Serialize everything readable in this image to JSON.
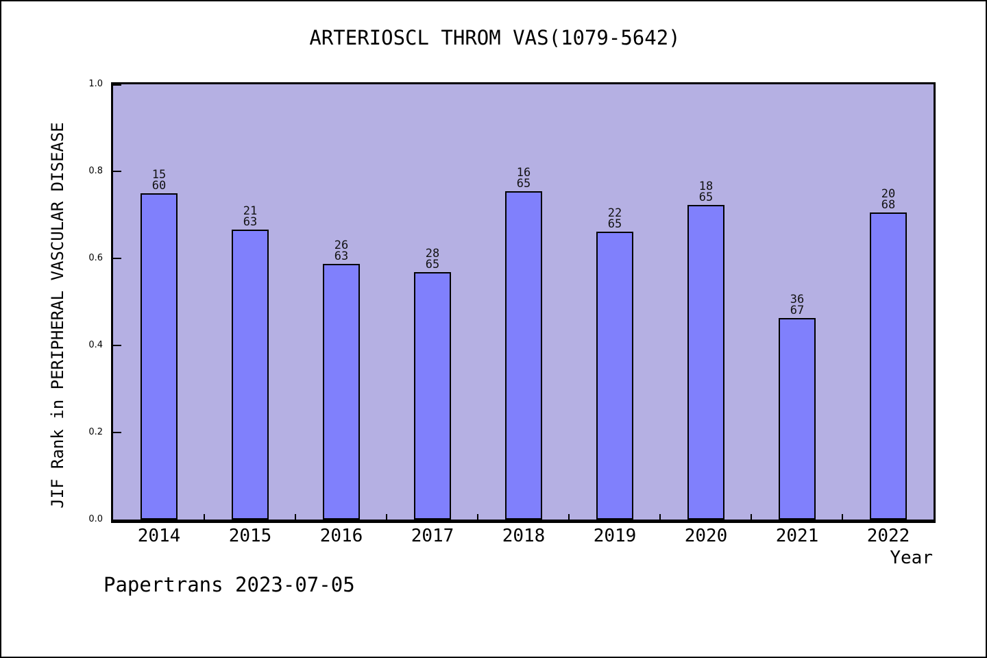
{
  "page": {
    "title": "ARTERIOSCL THROM VAS(1079-5642)",
    "footer": "Papertrans 2023-07-05"
  },
  "chart_data": {
    "type": "bar",
    "title": "ARTERIOSCL THROM VAS(1079-5642)",
    "xlabel": "Year",
    "ylabel": "JIF Rank in PERIPHERAL VASCULAR DISEASE",
    "ylim": [
      0.0,
      1.0
    ],
    "ytick_labels": [
      "0.0",
      "0.2",
      "0.4",
      "0.6",
      "0.8",
      "1.0"
    ],
    "grid": false,
    "legend": false,
    "categories": [
      "2014",
      "2015",
      "2016",
      "2017",
      "2018",
      "2019",
      "2020",
      "2021",
      "2022"
    ],
    "bars": [
      {
        "year": "2014",
        "rank": 15,
        "total": 60,
        "value": 0.75
      },
      {
        "year": "2015",
        "rank": 21,
        "total": 63,
        "value": 0.6667
      },
      {
        "year": "2016",
        "rank": 26,
        "total": 63,
        "value": 0.5873
      },
      {
        "year": "2017",
        "rank": 28,
        "total": 65,
        "value": 0.5692
      },
      {
        "year": "2018",
        "rank": 16,
        "total": 65,
        "value": 0.7538
      },
      {
        "year": "2019",
        "rank": 22,
        "total": 65,
        "value": 0.6615
      },
      {
        "year": "2020",
        "rank": 18,
        "total": 65,
        "value": 0.7231
      },
      {
        "year": "2021",
        "rank": 36,
        "total": 67,
        "value": 0.4627
      },
      {
        "year": "2022",
        "rank": 20,
        "total": 68,
        "value": 0.7059
      }
    ],
    "annotation_note": "each bar is labeled with rank stacked over total; bar height = 1 - rank/total",
    "footer": "Papertrans 2023-07-05",
    "colors": {
      "bar_fill": "#8080fc",
      "bar_border": "#000000",
      "plot_bg": "#b5b0e3",
      "page_bg": "#ffffff",
      "text": "#000000"
    }
  }
}
